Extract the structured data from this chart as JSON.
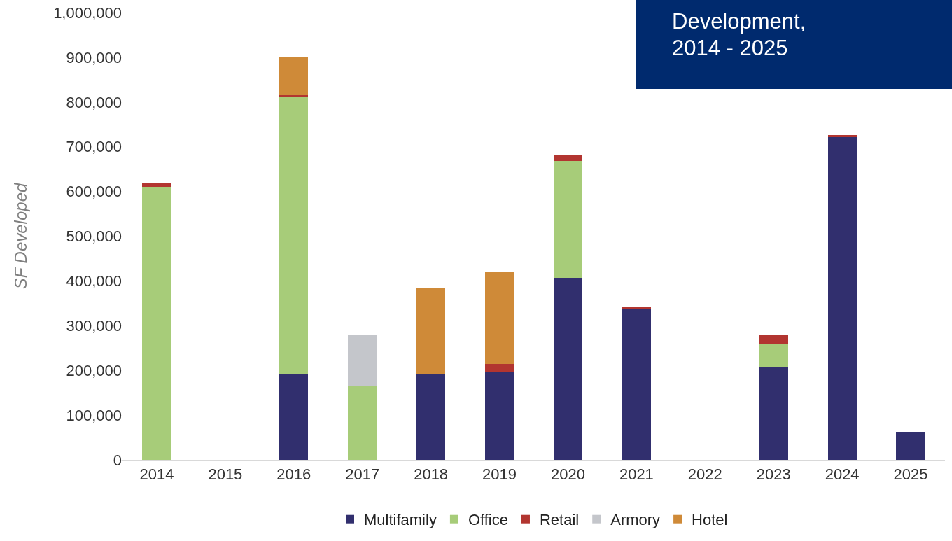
{
  "chart_data": {
    "type": "bar",
    "title": "Development,\n2014 - 2025",
    "ylabel": "SF Developed",
    "stacked": true,
    "categories": [
      "2014",
      "2015",
      "2016",
      "2017",
      "2018",
      "2019",
      "2020",
      "2021",
      "2022",
      "2023",
      "2024",
      "2025"
    ],
    "series": [
      {
        "name": "Multifamily",
        "color": "#312f6e",
        "values": [
          0,
          0,
          192000,
          0,
          192000,
          197000,
          407000,
          336000,
          0,
          206000,
          721000,
          63000
        ]
      },
      {
        "name": "Office",
        "color": "#a7cc79",
        "values": [
          610000,
          0,
          619000,
          166000,
          0,
          0,
          262000,
          0,
          0,
          54000,
          0,
          0
        ]
      },
      {
        "name": "Retail",
        "color": "#b23530",
        "values": [
          9000,
          0,
          5000,
          0,
          0,
          18000,
          12000,
          6000,
          0,
          19000,
          5000,
          0
        ]
      },
      {
        "name": "Armory",
        "color": "#c4c6cb",
        "values": [
          0,
          0,
          0,
          113000,
          0,
          0,
          0,
          0,
          0,
          0,
          0,
          0
        ]
      },
      {
        "name": "Hotel",
        "color": "#cf8a38",
        "values": [
          0,
          0,
          85000,
          0,
          193000,
          206000,
          0,
          0,
          0,
          0,
          0,
          0
        ]
      }
    ],
    "ylim": [
      0,
      1000000
    ],
    "yticks": [
      {
        "value": 0,
        "label": "0"
      },
      {
        "value": 100000,
        "label": "100,000"
      },
      {
        "value": 200000,
        "label": "200,000"
      },
      {
        "value": 300000,
        "label": "300,000"
      },
      {
        "value": 400000,
        "label": "400,000"
      },
      {
        "value": 500000,
        "label": "500,000"
      },
      {
        "value": 600000,
        "label": "600,000"
      },
      {
        "value": 700000,
        "label": "700,000"
      },
      {
        "value": 800000,
        "label": "800,000"
      },
      {
        "value": 900000,
        "label": "900,000"
      },
      {
        "value": 1000000,
        "label": "1,000,000"
      }
    ],
    "grid": false,
    "legend": "bottom"
  }
}
